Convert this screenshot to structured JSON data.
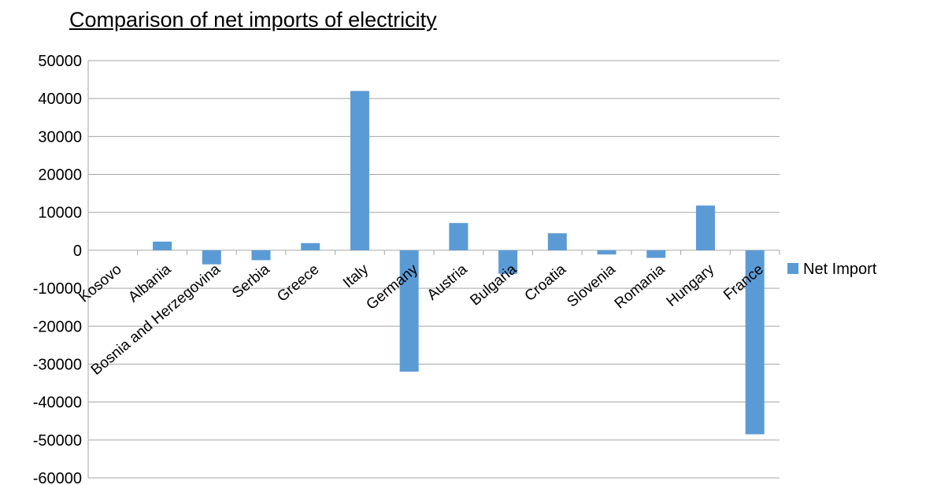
{
  "chart_data": {
    "type": "bar",
    "title": "Comparison of net imports of electricity",
    "xlabel": "",
    "ylabel": "",
    "categories": [
      "Kosovo",
      "Albania",
      "Bosnia and Herzegovina",
      "Serbia",
      "Greece",
      "Italy",
      "Germany",
      "Austria",
      "Bulgaria",
      "Croatia",
      "Slovenia",
      "Romania",
      "Hungary",
      "France"
    ],
    "series": [
      {
        "name": "Net Import",
        "color": "#5b9bd5",
        "values": [
          0,
          2300,
          -3700,
          -2600,
          1900,
          42000,
          -32000,
          7200,
          -6200,
          4500,
          -1100,
          -2000,
          11800,
          -48500
        ]
      }
    ],
    "ylim": [
      -60000,
      50000
    ],
    "yticks": [
      50000,
      40000,
      30000,
      20000,
      10000,
      0,
      -10000,
      -20000,
      -30000,
      -40000,
      -50000,
      -60000
    ],
    "grid": true,
    "legend_position": "right"
  }
}
